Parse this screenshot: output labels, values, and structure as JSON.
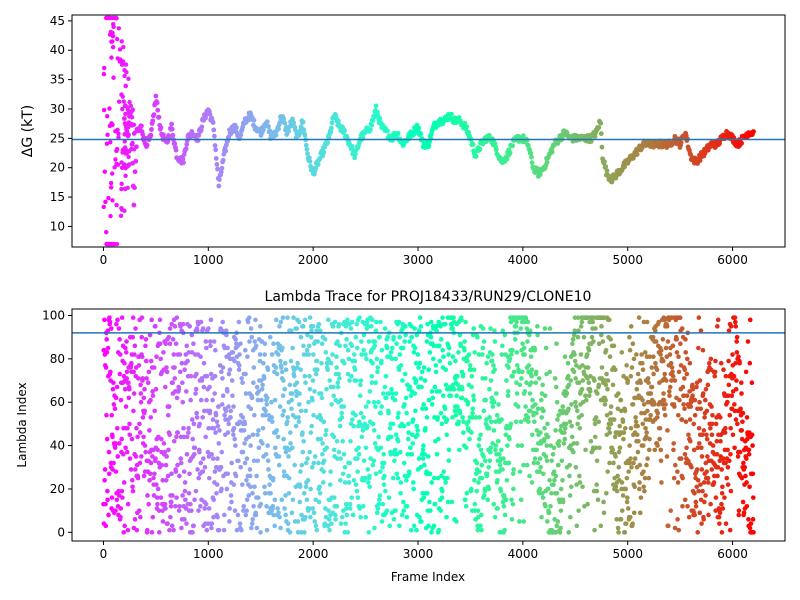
{
  "chart_data": [
    {
      "type": "scatter",
      "title": "",
      "xlabel": "",
      "ylabel": "ΔG (kT)",
      "xlim": [
        -300,
        6500
      ],
      "ylim": [
        6.5,
        46
      ],
      "xticks": [
        0,
        1000,
        2000,
        3000,
        4000,
        5000,
        6000
      ],
      "yticks": [
        10,
        15,
        20,
        25,
        30,
        35,
        40,
        45
      ],
      "hline": 24.8,
      "hline_color": "#1f77b4",
      "colormap": "rainbow (x=0 red → x=6200 violet)",
      "grid": false,
      "series": [
        {
          "x": [
            0,
            60,
            100,
            130,
            160,
            200,
            230,
            260,
            290,
            320,
            360,
            400,
            450,
            500,
            550,
            600,
            650,
            700,
            760,
            800,
            850,
            900,
            950,
            1000,
            1050,
            1100,
            1150,
            1200,
            1250,
            1300,
            1350,
            1400,
            1450,
            1500,
            1550,
            1600,
            1650,
            1700,
            1750,
            1800,
            1850,
            1900,
            1950,
            2000,
            2050,
            2100,
            2150,
            2200,
            2250,
            2300,
            2350,
            2400,
            2450,
            2500,
            2550,
            2600,
            2650,
            2700,
            2750,
            2800,
            2850,
            2900,
            2950,
            3000,
            3050,
            3100,
            3150,
            3200,
            3250,
            3300,
            3350,
            3400,
            3450,
            3500,
            3550,
            3600,
            3650,
            3700,
            3750,
            3800,
            3850,
            3900,
            3950,
            4000,
            4050,
            4100,
            4150,
            4200,
            4250,
            4300,
            4350,
            4400,
            4450,
            4500,
            4550,
            4600,
            4650,
            4700,
            4740,
            4760,
            4800,
            4850,
            4900,
            4950,
            5000,
            5050,
            5100,
            5150,
            5200,
            5250,
            5300,
            5350,
            5400,
            5450,
            5500,
            5550,
            5600,
            5650,
            5700,
            5750,
            5800,
            5850,
            5900,
            5950,
            6000,
            6050,
            6100,
            6150,
            6200
          ],
          "y": [
            44,
            38,
            42,
            33,
            30,
            28,
            26,
            30,
            14,
            26,
            27,
            24,
            25,
            32,
            26,
            24,
            27,
            22,
            21,
            25,
            26,
            25,
            28,
            30,
            27,
            17,
            22,
            26,
            27,
            25,
            28,
            29,
            27,
            26,
            28,
            25,
            26,
            29,
            26,
            28,
            25,
            28,
            22,
            19,
            21,
            23,
            25,
            29,
            27,
            26,
            24,
            22,
            25,
            26,
            27,
            30,
            27,
            26,
            25,
            26,
            24,
            25,
            26,
            27,
            24,
            24,
            27,
            28,
            28,
            29,
            28,
            28,
            27,
            25,
            22,
            24,
            25,
            25,
            23,
            21,
            22,
            24,
            25,
            25,
            24,
            20,
            19,
            20,
            22,
            24,
            25,
            26,
            25,
            25,
            25,
            25,
            25,
            26,
            28,
            22,
            19,
            18,
            19,
            20,
            21,
            22,
            23,
            24,
            24,
            24,
            24,
            24,
            24,
            25,
            24,
            26,
            22,
            21,
            22,
            23,
            24,
            24,
            25,
            26,
            25,
            24,
            25,
            26,
            26
          ]
        }
      ]
    },
    {
      "type": "scatter",
      "title": "Lambda Trace for PROJ18433/RUN29/CLONE10",
      "xlabel": "Frame Index",
      "ylabel": "Lambda Index",
      "xlim": [
        -300,
        6500
      ],
      "ylim": [
        -4,
        103
      ],
      "xticks": [
        0,
        1000,
        2000,
        3000,
        4000,
        5000,
        6000
      ],
      "yticks": [
        0,
        20,
        40,
        60,
        80,
        100
      ],
      "hline": 92,
      "hline_color": "#1f77b4",
      "colormap": "rainbow (x=0 red → x=6200 violet)",
      "grid": false,
      "description": "dense scatter of lambda index (0–99) vs frame index (0–6200); uniformly spread early, banded sweeps later",
      "series": [
        {
          "x": [
            0,
            50,
            100,
            150,
            200,
            250,
            300,
            350,
            400,
            450,
            500,
            600,
            700,
            800,
            900,
            1000,
            1100,
            1200,
            1300,
            1400,
            1500,
            1600,
            1700,
            1800,
            1900,
            2000,
            2100,
            2200,
            2300,
            2400,
            2500,
            2600,
            2700,
            2800,
            2900,
            3000,
            3100,
            3200,
            3300,
            3400,
            3500,
            3600,
            3700,
            3800,
            3900,
            4000,
            4100,
            4200,
            4300,
            4400,
            4500,
            4600,
            4700,
            4800,
            4900,
            5000,
            5100,
            5200,
            5300,
            5400,
            5500,
            5600,
            5700,
            5800,
            5900,
            6000,
            6100,
            6200
          ],
          "y": [
            10,
            55,
            70,
            25,
            90,
            40,
            60,
            15,
            80,
            35,
            50,
            20,
            75,
            45,
            90,
            30,
            65,
            10,
            85,
            40,
            55,
            25,
            95,
            50,
            70,
            15,
            60,
            35,
            90,
            45,
            20,
            75,
            55,
            30,
            85,
            40,
            65,
            25,
            90,
            80,
            50,
            20,
            70,
            10,
            85,
            95,
            60,
            35,
            15,
            40,
            75,
            90,
            95,
            85,
            30,
            20,
            45,
            60,
            70,
            90,
            80,
            40,
            30,
            55,
            20,
            90,
            30,
            15
          ]
        }
      ]
    }
  ]
}
